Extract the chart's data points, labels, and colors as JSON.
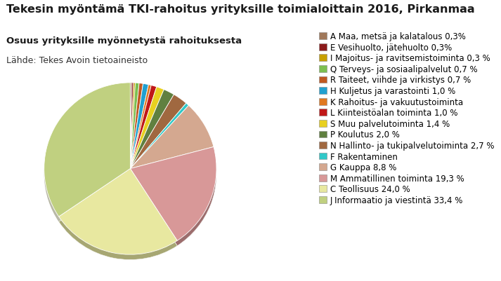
{
  "title": "Tekesin myöntämä TKI-rahoitus yrityksille toimialoittain 2016, Pirkanmaa",
  "subtitle": "Osuus yrityksille myönnetystä rahoituksesta",
  "source": "Lähde: Tekes Avoin tietoaineisto",
  "slices": [
    {
      "label": "A Maa, metsä ja kalatalous 0,3%",
      "value": 0.3,
      "color": "#A0785A"
    },
    {
      "label": "E Vesihuolto, jätehuolto 0,3%",
      "value": 0.3,
      "color": "#8B1A1A"
    },
    {
      "label": "I Majoitus- ja ravitsemistoiminta 0,3 %",
      "value": 0.3,
      "color": "#C8A000"
    },
    {
      "label": "Q Terveys- ja sosiaalipalvelut 0,7 %",
      "value": 0.7,
      "color": "#7CBF50"
    },
    {
      "label": "R Taiteet, viihde ja virkistys 0,7 %",
      "value": 0.7,
      "color": "#C05820"
    },
    {
      "label": "H Kuljetus ja varastointi 1,0 %",
      "value": 1.0,
      "color": "#20A0D0"
    },
    {
      "label": "K Rahoitus- ja vakuutustoiminta",
      "value": 0.5,
      "color": "#E07820"
    },
    {
      "label": "L Kiinteistöalan toiminta 1,0 %",
      "value": 1.0,
      "color": "#C01818"
    },
    {
      "label": "S Muu palvelutoiminta 1,4 %",
      "value": 1.4,
      "color": "#E8D020"
    },
    {
      "label": "P Koulutus 2,0 %",
      "value": 2.0,
      "color": "#608040"
    },
    {
      "label": "N Hallinto- ja tukipalvelutoiminta 2,7 %",
      "value": 2.7,
      "color": "#A06840"
    },
    {
      "label": "F Rakentaminen",
      "value": 0.6,
      "color": "#30C8C8"
    },
    {
      "label": "G Kauppa 8,8 %",
      "value": 8.8,
      "color": "#D4A890"
    },
    {
      "label": "M Ammatillinen toiminta 19,3 %",
      "value": 19.3,
      "color": "#D89898"
    },
    {
      "label": "C Teollisuus 24,0 %",
      "value": 24.0,
      "color": "#E8E8A0"
    },
    {
      "label": "J Informaatio ja viestintä 33,4 %",
      "value": 33.4,
      "color": "#C0D080"
    }
  ],
  "bg": "#ffffff",
  "title_color": "#1a1a1a",
  "title_fs": 11.5,
  "subtitle_fs": 9.5,
  "source_fs": 9,
  "legend_fs": 8.5,
  "shadow_color": "#808060",
  "shadow_depth": 0.06
}
